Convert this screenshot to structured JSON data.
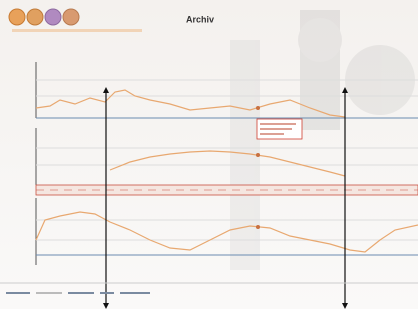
{
  "header": {
    "title": "Archiv"
  }
}
